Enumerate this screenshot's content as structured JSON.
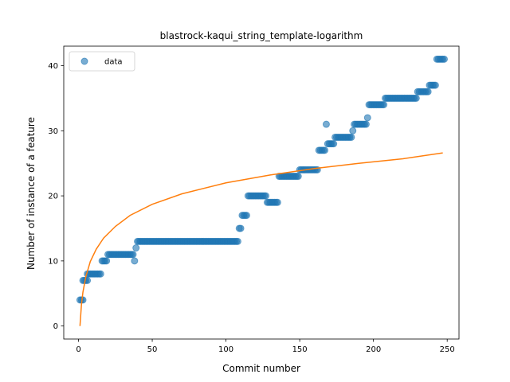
{
  "chart_data": {
    "type": "scatter",
    "title": "blastrock-kaqui_string_template-logarithm",
    "xlabel": "Commit number",
    "ylabel": "Number of instance of a feature",
    "xlim": [
      -10,
      258
    ],
    "ylim": [
      -2,
      43
    ],
    "xticks": [
      0,
      50,
      100,
      150,
      200,
      250
    ],
    "yticks": [
      0,
      10,
      20,
      30,
      40
    ],
    "grid": false,
    "legend": {
      "placement": "top-left",
      "entries": [
        "data"
      ]
    },
    "colors": {
      "data": "#1f77b4",
      "fit": "#ff7f0e"
    },
    "series": [
      {
        "name": "data",
        "kind": "scatter",
        "segments": [
          {
            "y": 4,
            "x_start": 1,
            "x_end": 3
          },
          {
            "y": 7,
            "x_start": 3,
            "x_end": 6
          },
          {
            "y": 8,
            "x_start": 6,
            "x_end": 15
          },
          {
            "y": 10,
            "x_start": 16,
            "x_end": 19
          },
          {
            "y": 11,
            "x_start": 20,
            "x_end": 37
          },
          {
            "y": 10,
            "x_start": 38,
            "x_end": 38
          },
          {
            "y": 12,
            "x_start": 39,
            "x_end": 39
          },
          {
            "y": 13,
            "x_start": 40,
            "x_end": 108
          },
          {
            "y": 15,
            "x_start": 109,
            "x_end": 110
          },
          {
            "y": 17,
            "x_start": 111,
            "x_end": 114
          },
          {
            "y": 20,
            "x_start": 115,
            "x_end": 127
          },
          {
            "y": 19,
            "x_start": 128,
            "x_end": 135
          },
          {
            "y": 23,
            "x_start": 136,
            "x_end": 149
          },
          {
            "y": 24,
            "x_start": 150,
            "x_end": 162
          },
          {
            "y": 27,
            "x_start": 163,
            "x_end": 167
          },
          {
            "y": 31,
            "x_start": 168,
            "x_end": 168
          },
          {
            "y": 28,
            "x_start": 169,
            "x_end": 173
          },
          {
            "y": 29,
            "x_start": 174,
            "x_end": 185
          },
          {
            "y": 30,
            "x_start": 186,
            "x_end": 186
          },
          {
            "y": 31,
            "x_start": 187,
            "x_end": 195
          },
          {
            "y": 32,
            "x_start": 196,
            "x_end": 196
          },
          {
            "y": 34,
            "x_start": 197,
            "x_end": 207
          },
          {
            "y": 35,
            "x_start": 208,
            "x_end": 229
          },
          {
            "y": 36,
            "x_start": 230,
            "x_end": 237
          },
          {
            "y": 37,
            "x_start": 238,
            "x_end": 242
          },
          {
            "y": 41,
            "x_start": 243,
            "x_end": 248
          }
        ]
      },
      {
        "name": "",
        "kind": "line",
        "x": [
          1,
          2,
          3,
          5,
          8,
          12,
          17,
          25,
          35,
          50,
          70,
          100,
          130,
          160,
          190,
          220,
          247
        ],
        "y": [
          0,
          3.3,
          5.2,
          7.6,
          9.9,
          11.8,
          13.5,
          15.3,
          17.0,
          18.7,
          20.3,
          22.0,
          23.2,
          24.2,
          25.0,
          25.7,
          26.6
        ]
      }
    ]
  }
}
